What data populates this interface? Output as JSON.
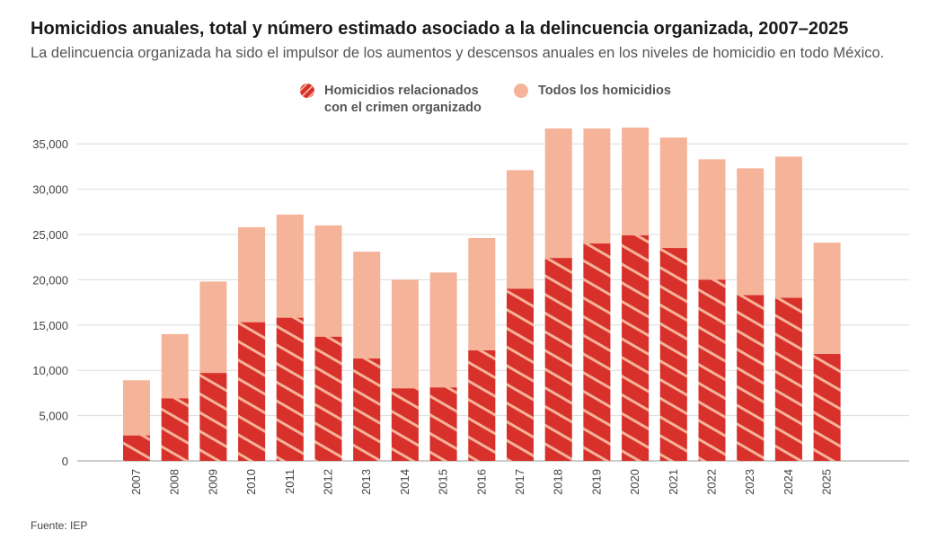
{
  "title": "Homicidios anuales, total y número estimado asociado a la delincuencia organizada, 2007–2025",
  "subtitle": "La delincuencia organizada ha sido el impulsor de los aumentos y descensos anuales en los niveles de homicidio en todo México.",
  "legend": {
    "organized": {
      "line1": "Homicidios relacionados",
      "line2": "con el crimen organizado"
    },
    "total": "Todos los homicidios"
  },
  "source": "Fuente: IEP",
  "colors": {
    "total": "#f5b39a",
    "organized": "#d8312b",
    "stripe": "#f5b39a",
    "grid": "#dcdcdc"
  },
  "chart_data": {
    "type": "bar",
    "categories": [
      "2007",
      "2008",
      "2009",
      "2010",
      "2011",
      "2012",
      "2013",
      "2014",
      "2015",
      "2016",
      "2017",
      "2018",
      "2019",
      "2020",
      "2021",
      "2022",
      "2023",
      "2024",
      "2025"
    ],
    "series": [
      {
        "name": "Todos los homicidios",
        "values": [
          8900,
          14000,
          19800,
          25800,
          27200,
          26000,
          23100,
          20000,
          20800,
          24600,
          32100,
          36700,
          36700,
          36800,
          35700,
          33300,
          32300,
          33600,
          24100
        ]
      },
      {
        "name": "Homicidios relacionados con el crimen organizado",
        "values": [
          2800,
          6900,
          9700,
          15300,
          15800,
          13700,
          11300,
          8000,
          8100,
          12200,
          19000,
          22400,
          24000,
          24900,
          23500,
          20000,
          18300,
          18000,
          11800
        ]
      }
    ],
    "ylim": [
      0,
      37000
    ],
    "yticks": [
      0,
      5000,
      10000,
      15000,
      20000,
      25000,
      30000,
      35000
    ],
    "ytick_labels": [
      "0",
      "5,000",
      "10,000",
      "15,000",
      "20,000",
      "25,000",
      "30,000",
      "35,000"
    ],
    "grid": true,
    "legend_position": "top"
  }
}
